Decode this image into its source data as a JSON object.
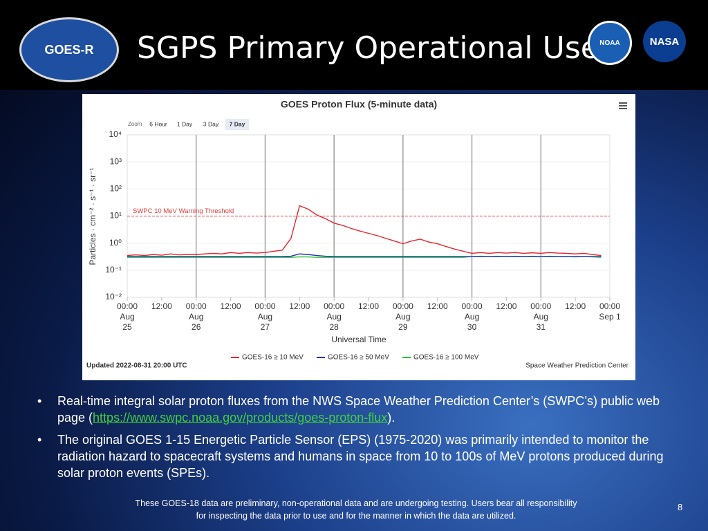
{
  "slide_title": "SGPS Primary Operational Use",
  "logos": {
    "goes": "GOES-R",
    "noaa": "NOAA",
    "nasa": "NASA"
  },
  "chart_data": {
    "type": "line",
    "title": "GOES Proton Flux (5-minute data)",
    "zoom": {
      "label": "Zoom",
      "buttons": [
        "6 Hour",
        "1 Day",
        "3 Day",
        "7 Day"
      ],
      "selected": 3
    },
    "xlabel": "Universal Time",
    "ylabel": "Particles · cm⁻² · s⁻¹ · sr⁻¹",
    "log_y": true,
    "grid": true,
    "x": [
      "Aug 25 00:00",
      "Aug 25 03:00",
      "Aug 25 06:00",
      "Aug 25 09:00",
      "Aug 25 12:00",
      "Aug 25 15:00",
      "Aug 25 18:00",
      "Aug 25 21:00",
      "Aug 26 00:00",
      "Aug 26 03:00",
      "Aug 26 06:00",
      "Aug 26 09:00",
      "Aug 26 12:00",
      "Aug 26 15:00",
      "Aug 26 18:00",
      "Aug 26 21:00",
      "Aug 27 00:00",
      "Aug 27 03:00",
      "Aug 27 06:00",
      "Aug 27 09:00",
      "Aug 27 12:00",
      "Aug 27 15:00",
      "Aug 27 18:00",
      "Aug 27 21:00",
      "Aug 28 00:00",
      "Aug 28 03:00",
      "Aug 28 06:00",
      "Aug 28 09:00",
      "Aug 28 12:00",
      "Aug 28 15:00",
      "Aug 28 18:00",
      "Aug 28 21:00",
      "Aug 29 00:00",
      "Aug 29 03:00",
      "Aug 29 06:00",
      "Aug 29 09:00",
      "Aug 29 12:00",
      "Aug 29 15:00",
      "Aug 29 18:00",
      "Aug 29 21:00",
      "Aug 30 00:00",
      "Aug 30 03:00",
      "Aug 30 06:00",
      "Aug 30 09:00",
      "Aug 30 12:00",
      "Aug 30 15:00",
      "Aug 30 18:00",
      "Aug 30 21:00",
      "Aug 31 00:00",
      "Aug 31 03:00",
      "Aug 31 06:00",
      "Aug 31 09:00",
      "Aug 31 12:00",
      "Aug 31 15:00",
      "Aug 31 18:00",
      "Aug 31 21:00",
      "Sep 1 00:00"
    ],
    "xlim": [
      "Aug 25 00:00",
      "Sep 1 00:00"
    ],
    "xticks": [
      {
        "value": "Aug 25 00:00",
        "label": [
          "00:00",
          "Aug",
          "25"
        ]
      },
      {
        "value": "Aug 25 12:00",
        "label": [
          "12:00"
        ]
      },
      {
        "value": "Aug 26 00:00",
        "label": [
          "00:00",
          "Aug",
          "26"
        ]
      },
      {
        "value": "Aug 26 12:00",
        "label": [
          "12:00"
        ]
      },
      {
        "value": "Aug 27 00:00",
        "label": [
          "00:00",
          "Aug",
          "27"
        ]
      },
      {
        "value": "Aug 27 12:00",
        "label": [
          "12:00"
        ]
      },
      {
        "value": "Aug 28 00:00",
        "label": [
          "00:00",
          "Aug",
          "28"
        ]
      },
      {
        "value": "Aug 28 12:00",
        "label": [
          "12:00"
        ]
      },
      {
        "value": "Aug 29 00:00",
        "label": [
          "00:00",
          "Aug",
          "29"
        ]
      },
      {
        "value": "Aug 29 12:00",
        "label": [
          "12:00"
        ]
      },
      {
        "value": "Aug 30 00:00",
        "label": [
          "00:00",
          "Aug",
          "30"
        ]
      },
      {
        "value": "Aug 30 12:00",
        "label": [
          "12:00"
        ]
      },
      {
        "value": "Aug 31 00:00",
        "label": [
          "00:00",
          "Aug",
          "31"
        ]
      },
      {
        "value": "Aug 31 12:00",
        "label": [
          "12:00"
        ]
      },
      {
        "value": "Sep 1 00:00",
        "label": [
          "00:00",
          "Sep 1"
        ]
      }
    ],
    "ylim": [
      0.01,
      10000
    ],
    "yticks": [
      {
        "value": 0.01,
        "label": "10⁻²"
      },
      {
        "value": 0.1,
        "label": "10⁻¹"
      },
      {
        "value": 1,
        "label": "10⁰"
      },
      {
        "value": 10,
        "label": "10¹"
      },
      {
        "value": 100,
        "label": "10²"
      },
      {
        "value": 1000,
        "label": "10³"
      },
      {
        "value": 10000,
        "label": "10⁴"
      }
    ],
    "threshold": {
      "value": 10,
      "label": "SWPC 10 MeV Warning Threshold",
      "color": "#e03a3a"
    },
    "series": [
      {
        "name": "GOES-16 ≥ 10 MeV",
        "color": "#e8262b",
        "values": [
          0.35,
          0.37,
          0.35,
          0.38,
          0.36,
          0.4,
          0.37,
          0.38,
          0.38,
          0.4,
          0.42,
          0.4,
          0.45,
          0.42,
          0.45,
          0.43,
          0.45,
          0.5,
          0.55,
          1.5,
          24,
          18,
          11,
          8,
          5.5,
          4.5,
          3.5,
          2.8,
          2.3,
          1.9,
          1.5,
          1.2,
          0.95,
          1.2,
          1.4,
          1.1,
          0.95,
          0.75,
          0.6,
          0.5,
          0.42,
          0.45,
          0.42,
          0.45,
          0.43,
          0.45,
          0.42,
          0.44,
          0.42,
          0.45,
          0.43,
          0.42,
          0.4,
          0.42,
          0.38,
          0.35,
          null
        ]
      },
      {
        "name": "GOES-16 ≥ 50 MeV",
        "color": "#1f2fc9",
        "values": [
          0.32,
          0.32,
          0.32,
          0.32,
          0.32,
          0.32,
          0.32,
          0.32,
          0.32,
          0.32,
          0.32,
          0.32,
          0.32,
          0.32,
          0.32,
          0.32,
          0.32,
          0.32,
          0.32,
          0.33,
          0.4,
          0.38,
          0.35,
          0.33,
          0.32,
          0.32,
          0.32,
          0.32,
          0.32,
          0.32,
          0.32,
          0.32,
          0.32,
          0.32,
          0.32,
          0.32,
          0.32,
          0.32,
          0.32,
          0.32,
          0.32,
          0.32,
          0.32,
          0.32,
          0.32,
          0.32,
          0.32,
          0.32,
          0.32,
          0.32,
          0.32,
          0.32,
          0.32,
          0.32,
          0.32,
          0.32,
          null
        ]
      },
      {
        "name": "GOES-16 ≥ 100 MeV",
        "color": "#2fc22f",
        "values": [
          0.3,
          0.3,
          0.3,
          0.3,
          0.3,
          0.3,
          0.3,
          0.3,
          0.3,
          0.3,
          0.3,
          0.3,
          0.3,
          0.3,
          0.3,
          0.3,
          0.3,
          0.3,
          0.3,
          0.3,
          0.31,
          0.31,
          0.3,
          0.3,
          0.3,
          0.3,
          0.3,
          0.3,
          0.3,
          0.3,
          0.3,
          0.3,
          0.3,
          0.3,
          0.3,
          0.3,
          0.3,
          0.3,
          0.3,
          0.3,
          0.32,
          0.33,
          0.32,
          0.33,
          0.32,
          0.33,
          0.32,
          0.33,
          0.32,
          0.33,
          0.32,
          0.32,
          0.31,
          0.32,
          0.31,
          0.3,
          null
        ]
      }
    ],
    "updated": "Updated 2022-08-31 20:00 UTC",
    "credit": "Space Weather Prediction Center"
  },
  "bullets": [
    {
      "before": "Real-time integral solar proton fluxes from the NWS Space Weather Prediction Center’s (SWPC’s) public web page (",
      "link": "https://www.swpc.noaa.gov/products/goes-proton-flux",
      "after": ")."
    },
    {
      "before": "The original GOES 1-15 Energetic Particle Sensor (EPS) (1975-2020) was primarily intended to monitor the radiation hazard to spacecraft systems and humans in space from 10 to 100s of MeV protons produced during solar proton events (SPEs)."
    }
  ],
  "footer": "These GOES-18 data are preliminary, non-operational data and are undergoing testing. Users bear all responsibility for inspecting the data prior to use and for the manner in which the data are utilized.",
  "page_number": "8"
}
